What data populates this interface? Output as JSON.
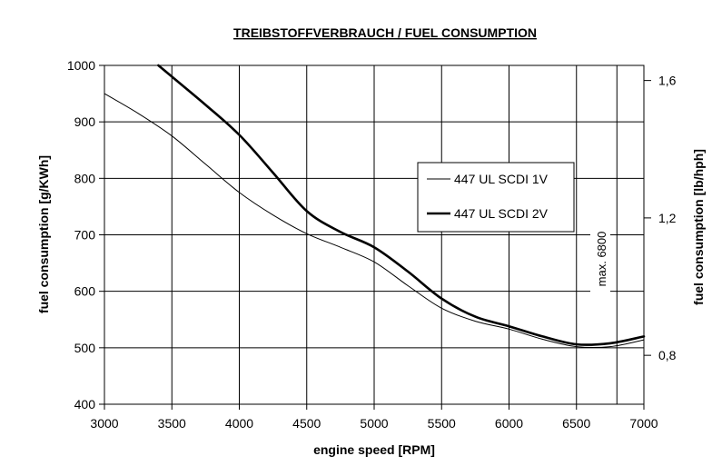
{
  "chart_data": {
    "type": "line",
    "title": "TREIBSTOFFVERBRAUCH / FUEL CONSUMPTION",
    "xlabel": "engine speed [RPM]",
    "ylabel": "fuel consumption [g/KWh]",
    "y2label": "fuel consumption [lb/hph]",
    "xlim": [
      3000,
      7000
    ],
    "ylim": [
      400,
      1000
    ],
    "xticks": [
      "3000",
      "3500",
      "4000",
      "4500",
      "5000",
      "5500",
      "6000",
      "6500",
      "7000"
    ],
    "yticks": [
      "400",
      "500",
      "600",
      "700",
      "800",
      "900",
      "1000"
    ],
    "y2ticks": [
      {
        "value": 1.6,
        "label": "1,6"
      },
      {
        "value": 1.2,
        "label": "1,2"
      },
      {
        "value": 0.8,
        "label": "0,8"
      }
    ],
    "y2_factor": 608.277,
    "grid": true,
    "legend_position": "right",
    "annotation": {
      "text": "max. 6800",
      "x": 6800
    },
    "series": [
      {
        "name": "447 UL SCDI 1V",
        "weight": "thin",
        "x": [
          3000,
          3250,
          3500,
          3750,
          4000,
          4250,
          4500,
          4750,
          5000,
          5250,
          5500,
          5750,
          6000,
          6250,
          6500,
          6750,
          7000
        ],
        "y": [
          950,
          915,
          875,
          825,
          775,
          735,
          702,
          678,
          652,
          610,
          570,
          547,
          533,
          515,
          502,
          502,
          514
        ]
      },
      {
        "name": "447 UL SCDI 2V",
        "weight": "thick",
        "x": [
          3400,
          3500,
          3750,
          4000,
          4250,
          4500,
          4750,
          5000,
          5250,
          5500,
          5750,
          6000,
          6250,
          6500,
          6750,
          7000
        ],
        "y": [
          1000,
          980,
          930,
          877,
          810,
          742,
          705,
          678,
          635,
          587,
          555,
          538,
          520,
          506,
          508,
          520
        ]
      }
    ]
  }
}
